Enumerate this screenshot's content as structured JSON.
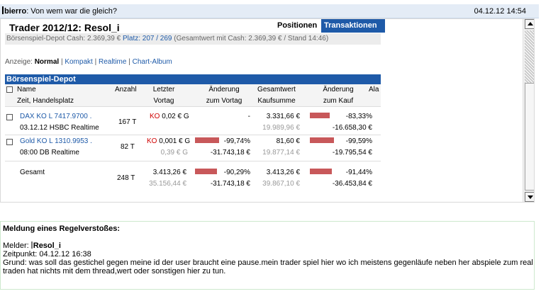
{
  "post": {
    "author": "bierro",
    "text": ": Von wem war die gleich?",
    "date": "04.12.12 14:54"
  },
  "trader": {
    "title": "Trader 2012/12: Resol_i",
    "tabs": [
      "Positionen",
      "Transaktionen"
    ],
    "depot_line_left": "Börsenspiel-Depot   Cash: 2.369,39 €  ",
    "platz": "Platz: 207 / 269",
    "depot_line_right": "  (Gesamtwert mit Cash: 2.369,39 € / Stand 14:46)",
    "anzeige_label": "Anzeige:",
    "anzeige_active": "Normal",
    "anzeige_links": [
      "Kompakt",
      "Realtime",
      "Chart-Album"
    ],
    "section_header": "Börsenspiel-Depot"
  },
  "table": {
    "headers": {
      "name": "Name",
      "name2": "Zeit, Handelsplatz",
      "anzahl": "Anzahl",
      "letzter": "Letzter",
      "vortag": "Vortag",
      "aenderung": "Änderung",
      "zum_vortag": "zum Vortag",
      "gesamtwert": "Gesamtwert",
      "kaufsumme": "Kaufsumme",
      "aenderung2": "Änderung",
      "zum_kauf": "zum Kauf",
      "ala": "Ala"
    },
    "rows": [
      {
        "name": "DAX KO L 7417.9700 .",
        "sub": "03.12.12 HSBC Realtime",
        "anzahl": "167 T",
        "ko": "KO",
        "letzter": " 0,02 € G",
        "vortag": "",
        "aend_vortag": "-",
        "aend_vortag_abs": "",
        "aend_vortag_pct": 0,
        "gesamtwert": "3.331,66 €",
        "kaufsumme": "19.989,96 €",
        "aend_kauf": "-83,33%",
        "aend_kauf_abs": "-16.658,30 €",
        "aend_kauf_pct": 83.33
      },
      {
        "name": "Gold KO L 1310.9953 .",
        "sub": "08:00 DB Realtime",
        "anzahl": "82 T",
        "ko": "KO",
        "letzter": " 0,001 € G",
        "vortag": "0,39 € G",
        "aend_vortag": "-99,74%",
        "aend_vortag_abs": "-31.743,18 €",
        "aend_vortag_pct": 99.74,
        "gesamtwert": "81,60 €",
        "kaufsumme": "19.877,14 €",
        "aend_kauf": "-99,59%",
        "aend_kauf_abs": "-19.795,54 €",
        "aend_kauf_pct": 99.59
      }
    ],
    "total": {
      "label": "Gesamt",
      "anzahl": "248 T",
      "letzter": "3.413,26 €",
      "vortag": "35.156,44 €",
      "aend_vortag": "-90,29%",
      "aend_vortag_abs": "-31.743,18 €",
      "aend_vortag_pct": 90.29,
      "gesamtwert": "3.413,26 €",
      "kaufsumme": "39.867,10 €",
      "aend_kauf": "-91,44%",
      "aend_kauf_abs": "-36.453,84 €",
      "aend_kauf_pct": 91.44
    }
  },
  "report": {
    "title": "Meldung eines Regelverstoßes:",
    "melder_label": "Melder: ",
    "melder_name": "Resol_i",
    "zeitpunkt": "Zeitpunkt: 04.12.12 16:38",
    "grund": "Grund: was soll das gestichel gegen meine id der user braucht eine pause.mein trader spiel hier wo ich meistens gegenläufe neben her abspiele zum real traden hat nichts mit dem thread,wert oder sonstigen hier zu tun."
  },
  "colors": {
    "accent": "#1e5aa8",
    "bar": "#c8585a",
    "ko": "#d00000"
  }
}
